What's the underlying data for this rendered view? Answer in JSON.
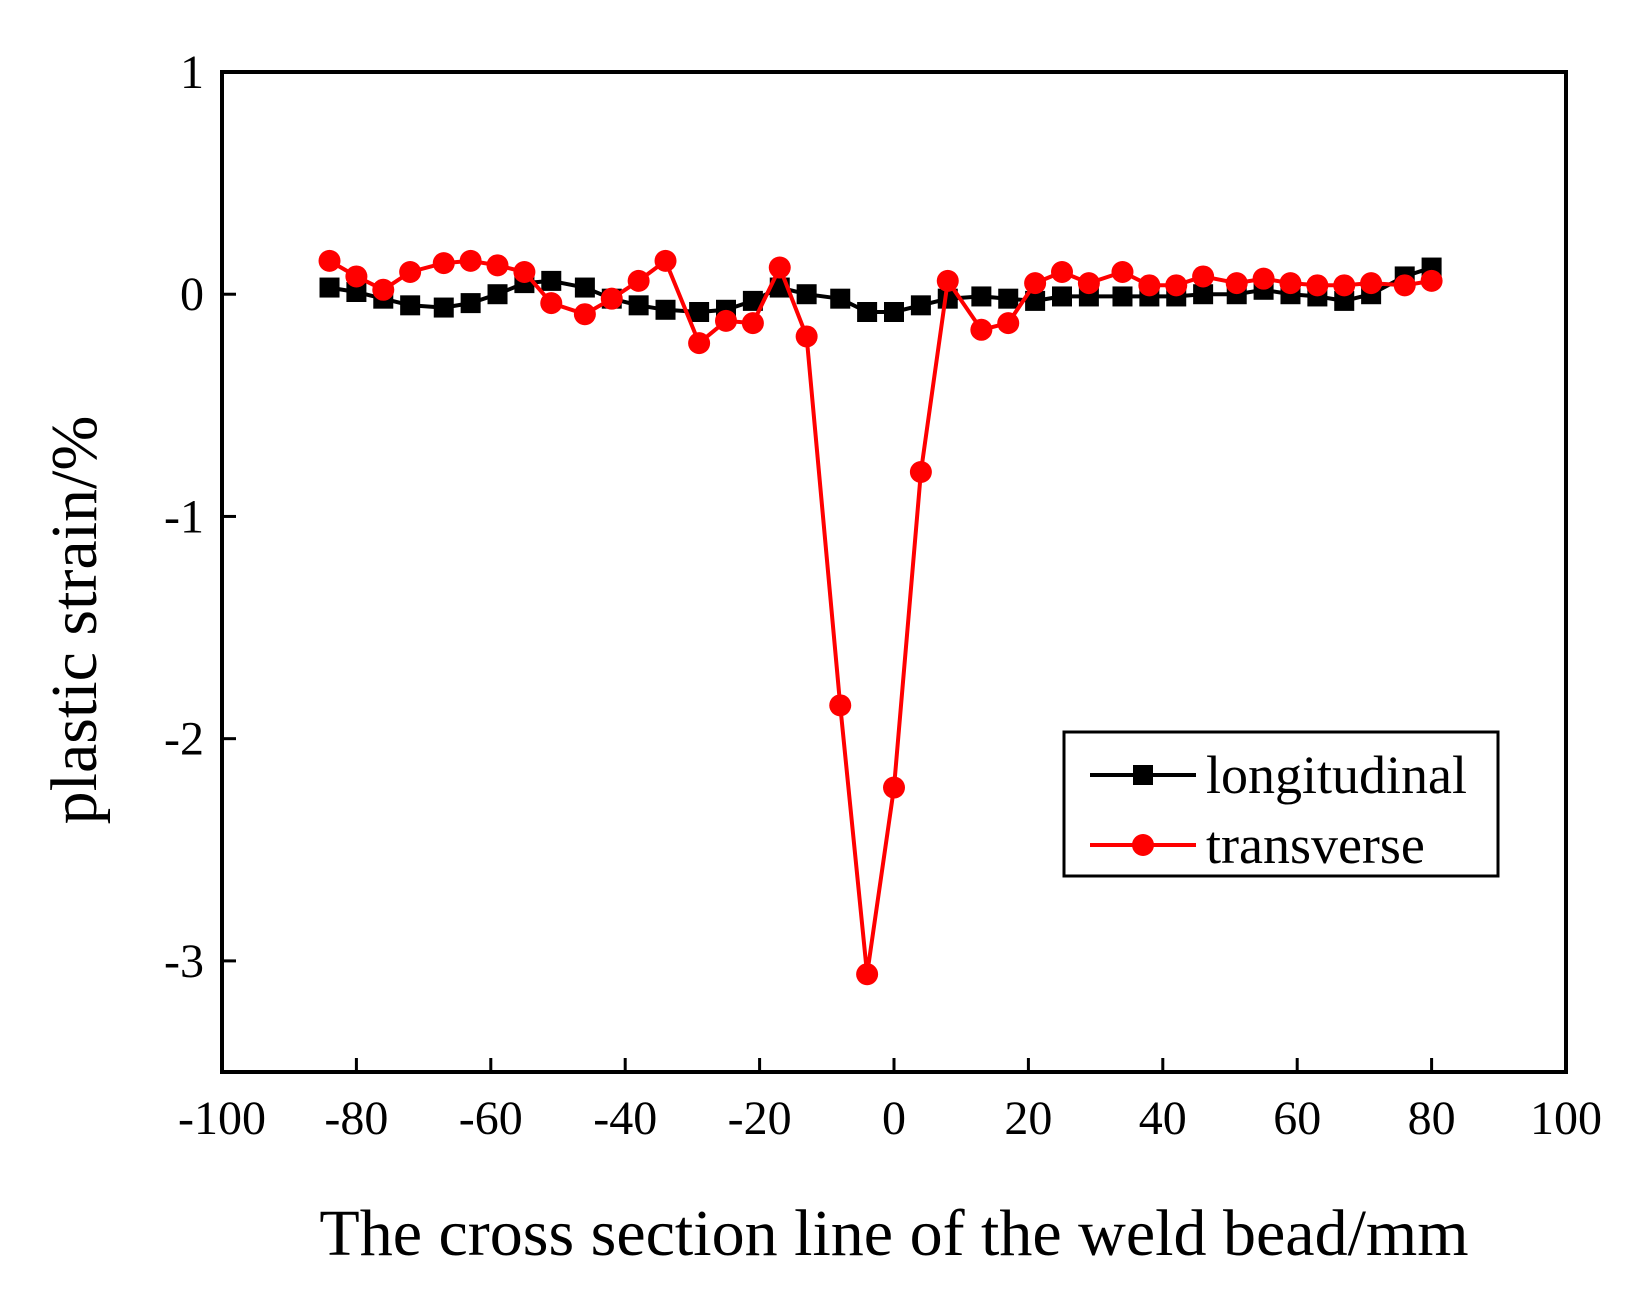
{
  "chart_data": {
    "type": "line",
    "title": "",
    "xlabel": "The cross section line of the weld bead/mm",
    "ylabel": "plastic strain/%",
    "xlim": [
      -100,
      100
    ],
    "ylim": [
      -3.5,
      1
    ],
    "xticks": [
      -100,
      -80,
      -60,
      -40,
      -20,
      0,
      20,
      40,
      60,
      80,
      100
    ],
    "yticks": [
      1,
      0,
      -1,
      -2,
      -3
    ],
    "xtick_labels": [
      "-100",
      "-80",
      "-60",
      "-40",
      "-20",
      "0",
      "20",
      "40",
      "60",
      "80",
      "100"
    ],
    "ytick_labels": [
      "1",
      "0",
      "-1",
      "-2",
      "-3"
    ],
    "grid": false,
    "legend_position": "lower-right",
    "series": [
      {
        "name": "longitudinal",
        "color": "#000000",
        "marker": "square",
        "x": [
          -84,
          -80,
          -76,
          -72,
          -67,
          -63,
          -59,
          -55,
          -51,
          -46,
          -42,
          -38,
          -34,
          -29,
          -25,
          -21,
          -17,
          -13,
          -8,
          -4,
          0,
          4,
          8,
          13,
          17,
          21,
          25,
          29,
          34,
          38,
          42,
          46,
          51,
          55,
          59,
          63,
          67,
          71,
          76,
          80
        ],
        "y": [
          0.03,
          0.01,
          -0.02,
          -0.05,
          -0.06,
          -0.04,
          0.0,
          0.05,
          0.06,
          0.03,
          -0.02,
          -0.05,
          -0.07,
          -0.08,
          -0.07,
          -0.03,
          0.03,
          0.0,
          -0.02,
          -0.08,
          -0.08,
          -0.05,
          -0.02,
          -0.01,
          -0.02,
          -0.03,
          -0.01,
          -0.01,
          -0.01,
          -0.01,
          -0.01,
          0.0,
          0.0,
          0.02,
          0.0,
          -0.01,
          -0.03,
          0.0,
          0.08,
          0.12
        ]
      },
      {
        "name": "transverse",
        "color": "#ff0000",
        "marker": "circle",
        "x": [
          -84,
          -80,
          -76,
          -72,
          -67,
          -63,
          -59,
          -55,
          -51,
          -46,
          -42,
          -38,
          -34,
          -29,
          -25,
          -21,
          -17,
          -13,
          -8,
          -4,
          0,
          4,
          8,
          13,
          17,
          21,
          25,
          29,
          34,
          38,
          42,
          46,
          51,
          55,
          59,
          63,
          67,
          71,
          76,
          80
        ],
        "y": [
          0.15,
          0.08,
          0.02,
          0.1,
          0.14,
          0.15,
          0.13,
          0.1,
          -0.04,
          -0.09,
          -0.02,
          0.06,
          0.15,
          -0.22,
          -0.12,
          -0.13,
          0.12,
          -0.19,
          -1.85,
          -3.06,
          -2.22,
          -0.8,
          0.06,
          -0.16,
          -0.13,
          0.05,
          0.1,
          0.05,
          0.1,
          0.04,
          0.04,
          0.08,
          0.05,
          0.07,
          0.05,
          0.04,
          0.04,
          0.05,
          0.04,
          0.06
        ]
      }
    ]
  }
}
